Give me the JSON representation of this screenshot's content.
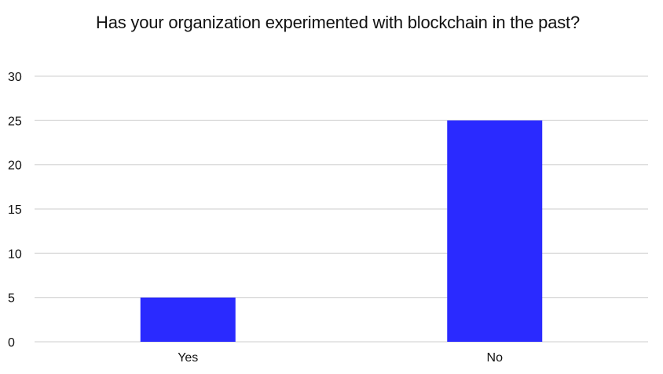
{
  "chart_data": {
    "type": "bar",
    "title": "Has your organization experimented with blockchain in the past?",
    "categories": [
      "Yes",
      "No"
    ],
    "values": [
      5,
      25
    ],
    "ylim": [
      0,
      30
    ],
    "yticks": [
      0,
      5,
      10,
      15,
      20,
      25,
      30
    ],
    "grid": true,
    "legend": "none",
    "bar_color": "#2a2aff",
    "grid_color": "#d6d6d6"
  }
}
